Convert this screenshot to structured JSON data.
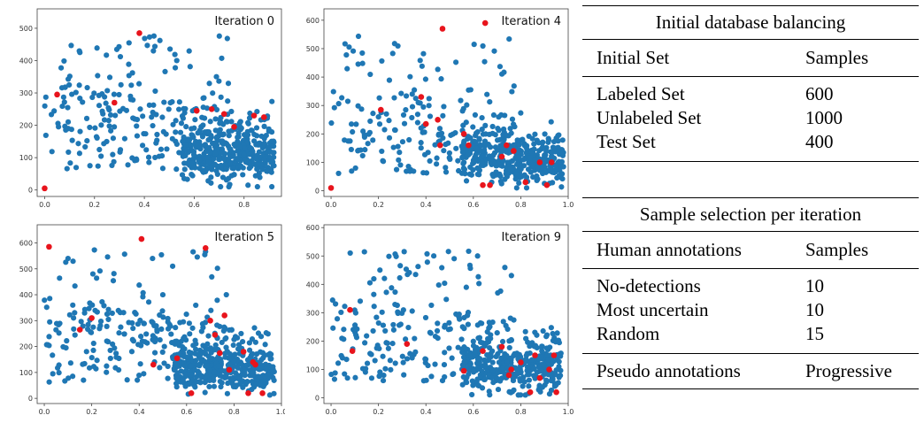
{
  "chart_data": [
    {
      "type": "scatter",
      "title": "Iteration 0",
      "xlim": [
        -0.03,
        0.95
      ],
      "ylim": [
        -20,
        560
      ],
      "xticks": [
        "0.0",
        "0.2",
        "0.4",
        "0.6",
        "0.8"
      ],
      "xtick_values": [
        0.0,
        0.2,
        0.4,
        0.6,
        0.8
      ],
      "yticks": [
        "0",
        "100",
        "200",
        "300",
        "400",
        "500"
      ],
      "ytick_values": [
        0,
        100,
        200,
        300,
        400,
        500
      ],
      "colors": {
        "unlabeled": "#1f77b4",
        "selected": "#e8141c"
      },
      "selected_points": [
        [
          0.0,
          5
        ],
        [
          0.05,
          295
        ],
        [
          0.28,
          270
        ],
        [
          0.38,
          485
        ],
        [
          0.61,
          245
        ],
        [
          0.67,
          250
        ],
        [
          0.72,
          235
        ],
        [
          0.76,
          195
        ],
        [
          0.84,
          230
        ],
        [
          0.88,
          225
        ]
      ]
    },
    {
      "type": "scatter",
      "title": "Iteration 4",
      "xlim": [
        -0.03,
        1.0
      ],
      "ylim": [
        -20,
        640
      ],
      "xticks": [
        "0.0",
        "0.2",
        "0.4",
        "0.6",
        "0.8",
        "1.0"
      ],
      "xtick_values": [
        0.0,
        0.2,
        0.4,
        0.6,
        0.8,
        1.0
      ],
      "yticks": [
        "0",
        "100",
        "200",
        "300",
        "400",
        "500",
        "600"
      ],
      "ytick_values": [
        0,
        100,
        200,
        300,
        400,
        500,
        600
      ],
      "colors": {
        "unlabeled": "#1f77b4",
        "selected": "#e8141c"
      },
      "selected_points": [
        [
          0.0,
          10
        ],
        [
          0.21,
          285
        ],
        [
          0.38,
          330
        ],
        [
          0.4,
          235
        ],
        [
          0.45,
          250
        ],
        [
          0.46,
          160
        ],
        [
          0.47,
          570
        ],
        [
          0.56,
          200
        ],
        [
          0.58,
          160
        ],
        [
          0.64,
          20
        ],
        [
          0.65,
          590
        ],
        [
          0.67,
          20
        ],
        [
          0.72,
          120
        ],
        [
          0.74,
          160
        ],
        [
          0.77,
          140
        ],
        [
          0.82,
          30
        ],
        [
          0.88,
          100
        ],
        [
          0.91,
          20
        ],
        [
          0.93,
          100
        ]
      ]
    },
    {
      "type": "scatter",
      "title": "Iteration 5",
      "xlim": [
        -0.03,
        1.0
      ],
      "ylim": [
        -20,
        670
      ],
      "xticks": [
        "0.0",
        "0.2",
        "0.4",
        "0.6",
        "0.8",
        "1.0"
      ],
      "xtick_values": [
        0.0,
        0.2,
        0.4,
        0.6,
        0.8,
        1.0
      ],
      "yticks": [
        "0",
        "100",
        "200",
        "300",
        "400",
        "500",
        "600"
      ],
      "ytick_values": [
        0,
        100,
        200,
        300,
        400,
        500,
        600
      ],
      "colors": {
        "unlabeled": "#1f77b4",
        "selected": "#e8141c"
      },
      "selected_points": [
        [
          0.02,
          585
        ],
        [
          0.15,
          265
        ],
        [
          0.2,
          310
        ],
        [
          0.41,
          615
        ],
        [
          0.46,
          130
        ],
        [
          0.56,
          155
        ],
        [
          0.62,
          20
        ],
        [
          0.68,
          580
        ],
        [
          0.7,
          300
        ],
        [
          0.72,
          245
        ],
        [
          0.74,
          175
        ],
        [
          0.76,
          320
        ],
        [
          0.78,
          110
        ],
        [
          0.84,
          180
        ],
        [
          0.86,
          20
        ],
        [
          0.88,
          140
        ],
        [
          0.89,
          130
        ],
        [
          0.92,
          20
        ]
      ]
    },
    {
      "type": "scatter",
      "title": "Iteration 9",
      "xlim": [
        -0.03,
        1.0
      ],
      "ylim": [
        -20,
        610
      ],
      "xticks": [
        "0.0",
        "0.2",
        "0.4",
        "0.6",
        "0.8",
        "1.0"
      ],
      "xtick_values": [
        0.0,
        0.2,
        0.4,
        0.6,
        0.8,
        1.0
      ],
      "yticks": [
        "0",
        "100",
        "200",
        "300",
        "400",
        "500",
        "600"
      ],
      "ytick_values": [
        0,
        100,
        200,
        300,
        400,
        500,
        600
      ],
      "colors": {
        "unlabeled": "#1f77b4",
        "selected": "#e8141c"
      },
      "selected_points": [
        [
          0.08,
          310
        ],
        [
          0.09,
          165
        ],
        [
          0.32,
          190
        ],
        [
          0.56,
          95
        ],
        [
          0.64,
          165
        ],
        [
          0.72,
          180
        ],
        [
          0.75,
          80
        ],
        [
          0.76,
          100
        ],
        [
          0.8,
          125
        ],
        [
          0.84,
          20
        ],
        [
          0.86,
          150
        ],
        [
          0.88,
          70
        ],
        [
          0.92,
          100
        ],
        [
          0.94,
          150
        ],
        [
          0.95,
          20
        ]
      ]
    }
  ],
  "tables": {
    "balancing": {
      "caption": "Initial database balancing",
      "header": [
        "Initial Set",
        "Samples"
      ],
      "rows": [
        [
          "Labeled Set",
          "600"
        ],
        [
          "Unlabeled Set",
          "1000"
        ],
        [
          "Test Set",
          "400"
        ]
      ]
    },
    "selection": {
      "caption": "Sample selection per iteration",
      "header": [
        "Human annotations",
        "Samples"
      ],
      "rows": [
        [
          "No-detections",
          "10"
        ],
        [
          "Most uncertain",
          "10"
        ],
        [
          "Random",
          "15"
        ]
      ],
      "footer": [
        "Pseudo annotations",
        "Progressive"
      ]
    }
  }
}
